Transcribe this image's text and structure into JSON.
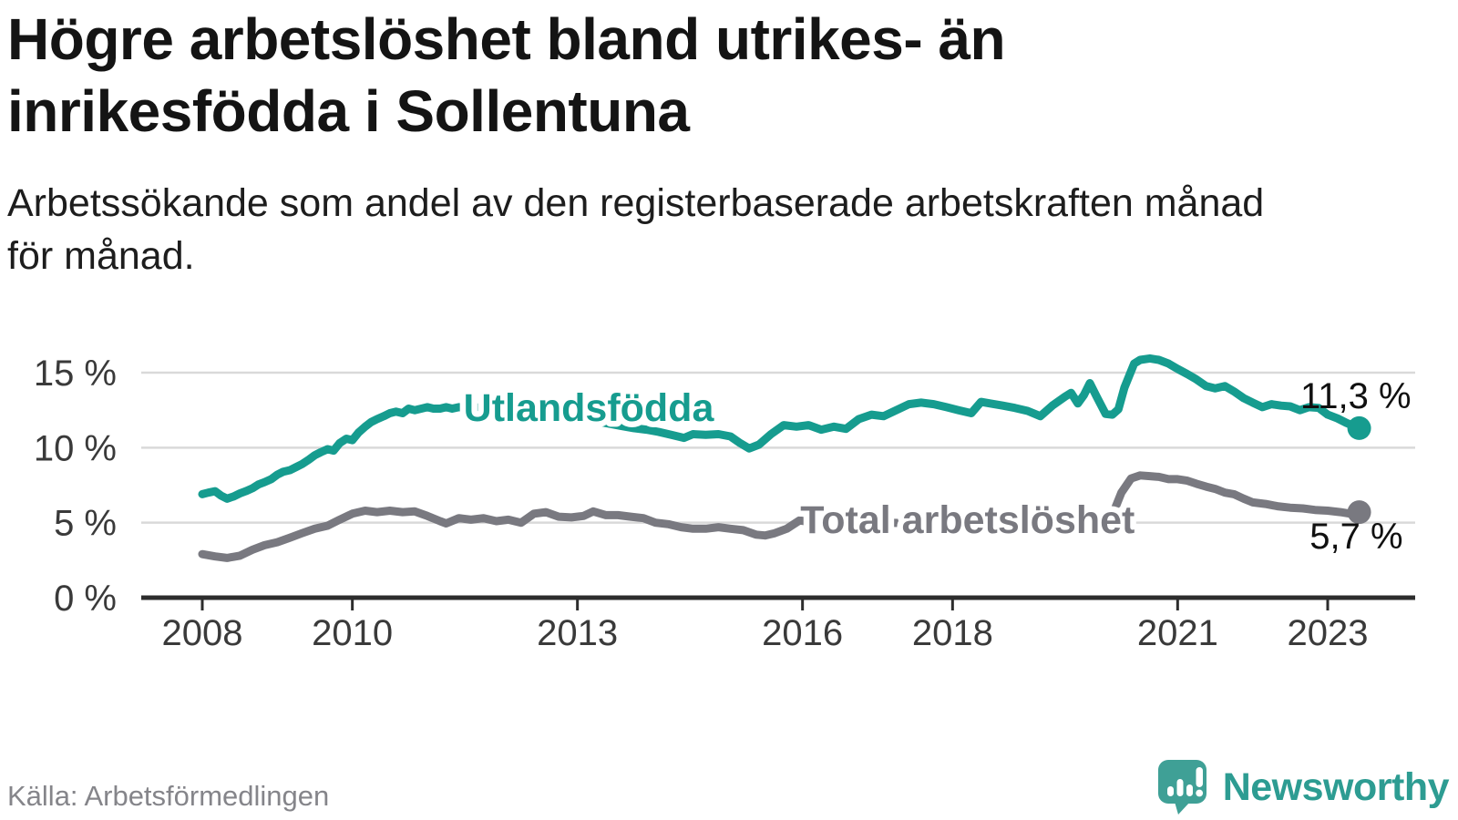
{
  "header": {
    "title_lines": [
      "Högre arbetslöshet bland utrikes- än",
      "inrikesfödda i Sollentuna"
    ],
    "subtitle_lines": [
      "Arbetssökande som andel av den registerbaserade arbetskraften månad",
      "för månad."
    ]
  },
  "footer": {
    "source": "Källa: Arbetsförmedlingen",
    "brand": "Newsworthy",
    "brand_color": "#2d9c92",
    "logo_icon": "speech-bubble-bar-chart-icon"
  },
  "colors": {
    "background": "#ffffff",
    "grid": "#d9d9d9",
    "axis": "#2d2d2d",
    "axis_text": "#3a3a3a",
    "teal_series": "#169c8f",
    "gray_series": "#797980",
    "value_label": "#101010"
  },
  "chart_data": {
    "type": "line",
    "unit": "%",
    "grid": "horizontal-only",
    "x_axis": {
      "range": [
        2007.2,
        2024.2
      ],
      "ticks": [
        2008,
        2010,
        2013,
        2016,
        2018,
        2021,
        2023
      ],
      "tick_labels": [
        "2008",
        "2010",
        "2013",
        "2016",
        "2018",
        "2021",
        "2023"
      ]
    },
    "y_axis": {
      "range": [
        0,
        16.6
      ],
      "ticks": [
        0,
        5,
        10,
        15
      ],
      "tick_labels": [
        "0 %",
        "5 %",
        "10 %",
        "15 %"
      ]
    },
    "series": [
      {
        "id": "utlandsfodda",
        "name": "Utlandsfödda",
        "color": "#169c8f",
        "end_value": 11.3,
        "end_label": "11,3 %",
        "label_anchor": {
          "t": 2013.15,
          "pct": 11.78
        },
        "points": [
          [
            2008.0,
            6.9
          ],
          [
            2008.08,
            7.0
          ],
          [
            2008.17,
            7.1
          ],
          [
            2008.25,
            6.8
          ],
          [
            2008.33,
            6.6
          ],
          [
            2008.42,
            6.75
          ],
          [
            2008.5,
            6.95
          ],
          [
            2008.58,
            7.1
          ],
          [
            2008.67,
            7.3
          ],
          [
            2008.75,
            7.55
          ],
          [
            2008.83,
            7.7
          ],
          [
            2008.92,
            7.9
          ],
          [
            2009.0,
            8.2
          ],
          [
            2009.08,
            8.4
          ],
          [
            2009.17,
            8.5
          ],
          [
            2009.25,
            8.7
          ],
          [
            2009.33,
            8.9
          ],
          [
            2009.42,
            9.2
          ],
          [
            2009.5,
            9.5
          ],
          [
            2009.58,
            9.7
          ],
          [
            2009.67,
            9.9
          ],
          [
            2009.75,
            9.8
          ],
          [
            2009.83,
            10.3
          ],
          [
            2009.92,
            10.6
          ],
          [
            2010.0,
            10.5
          ],
          [
            2010.08,
            11.0
          ],
          [
            2010.17,
            11.4
          ],
          [
            2010.25,
            11.7
          ],
          [
            2010.33,
            11.9
          ],
          [
            2010.42,
            12.1
          ],
          [
            2010.5,
            12.3
          ],
          [
            2010.58,
            12.4
          ],
          [
            2010.67,
            12.3
          ],
          [
            2010.75,
            12.6
          ],
          [
            2010.83,
            12.5
          ],
          [
            2010.92,
            12.6
          ],
          [
            2011.0,
            12.7
          ],
          [
            2011.08,
            12.6
          ],
          [
            2011.17,
            12.6
          ],
          [
            2011.25,
            12.7
          ],
          [
            2011.33,
            12.6
          ],
          [
            2011.42,
            12.7
          ],
          [
            2011.58,
            12.65
          ],
          [
            2011.75,
            12.7
          ],
          [
            2011.92,
            12.55
          ],
          [
            2012.08,
            12.45
          ],
          [
            2012.25,
            12.35
          ],
          [
            2012.42,
            12.25
          ],
          [
            2012.58,
            12.15
          ],
          [
            2012.75,
            12.05
          ],
          [
            2012.92,
            11.95
          ],
          [
            2013.08,
            11.85
          ],
          [
            2013.25,
            11.75
          ],
          [
            2013.42,
            11.6
          ],
          [
            2013.58,
            11.45
          ],
          [
            2013.75,
            11.3
          ],
          [
            2013.92,
            11.2
          ],
          [
            2014.08,
            11.05
          ],
          [
            2014.25,
            10.85
          ],
          [
            2014.42,
            10.65
          ],
          [
            2014.54,
            10.9
          ],
          [
            2014.71,
            10.85
          ],
          [
            2014.88,
            10.9
          ],
          [
            2015.04,
            10.75
          ],
          [
            2015.17,
            10.3
          ],
          [
            2015.29,
            9.95
          ],
          [
            2015.42,
            10.2
          ],
          [
            2015.58,
            10.9
          ],
          [
            2015.75,
            11.5
          ],
          [
            2015.92,
            11.4
          ],
          [
            2016.08,
            11.5
          ],
          [
            2016.25,
            11.2
          ],
          [
            2016.42,
            11.4
          ],
          [
            2016.58,
            11.25
          ],
          [
            2016.75,
            11.9
          ],
          [
            2016.92,
            12.2
          ],
          [
            2017.08,
            12.1
          ],
          [
            2017.25,
            12.5
          ],
          [
            2017.42,
            12.9
          ],
          [
            2017.58,
            13.0
          ],
          [
            2017.75,
            12.9
          ],
          [
            2017.92,
            12.7
          ],
          [
            2018.08,
            12.5
          ],
          [
            2018.25,
            12.3
          ],
          [
            2018.38,
            13.05
          ],
          [
            2018.5,
            12.95
          ],
          [
            2018.67,
            12.8
          ],
          [
            2018.83,
            12.65
          ],
          [
            2019.0,
            12.45
          ],
          [
            2019.17,
            12.1
          ],
          [
            2019.33,
            12.8
          ],
          [
            2019.5,
            13.4
          ],
          [
            2019.58,
            13.65
          ],
          [
            2019.67,
            12.95
          ],
          [
            2019.75,
            13.5
          ],
          [
            2019.83,
            14.3
          ],
          [
            2019.92,
            13.4
          ],
          [
            2020.04,
            12.25
          ],
          [
            2020.13,
            12.2
          ],
          [
            2020.21,
            12.55
          ],
          [
            2020.29,
            14.0
          ],
          [
            2020.42,
            15.6
          ],
          [
            2020.5,
            15.85
          ],
          [
            2020.63,
            15.95
          ],
          [
            2020.75,
            15.85
          ],
          [
            2020.88,
            15.6
          ],
          [
            2021.0,
            15.25
          ],
          [
            2021.13,
            14.9
          ],
          [
            2021.25,
            14.55
          ],
          [
            2021.38,
            14.1
          ],
          [
            2021.5,
            13.95
          ],
          [
            2021.63,
            14.1
          ],
          [
            2021.75,
            13.75
          ],
          [
            2021.88,
            13.3
          ],
          [
            2022.0,
            13.0
          ],
          [
            2022.13,
            12.7
          ],
          [
            2022.25,
            12.9
          ],
          [
            2022.38,
            12.8
          ],
          [
            2022.5,
            12.75
          ],
          [
            2022.63,
            12.5
          ],
          [
            2022.75,
            12.7
          ],
          [
            2022.88,
            12.65
          ],
          [
            2023.0,
            12.2
          ],
          [
            2023.13,
            11.95
          ],
          [
            2023.25,
            11.65
          ],
          [
            2023.42,
            11.3
          ]
        ]
      },
      {
        "id": "total",
        "name": "Total arbetslöshet",
        "color": "#797980",
        "end_value": 5.7,
        "end_label": "5,7 %",
        "label_anchor": {
          "t": 2018.2,
          "pct": 4.31
        },
        "points": [
          [
            2008.0,
            2.9
          ],
          [
            2008.17,
            2.75
          ],
          [
            2008.33,
            2.65
          ],
          [
            2008.5,
            2.8
          ],
          [
            2008.67,
            3.2
          ],
          [
            2008.83,
            3.5
          ],
          [
            2009.0,
            3.7
          ],
          [
            2009.17,
            4.0
          ],
          [
            2009.33,
            4.3
          ],
          [
            2009.5,
            4.6
          ],
          [
            2009.67,
            4.8
          ],
          [
            2009.83,
            5.2
          ],
          [
            2010.0,
            5.6
          ],
          [
            2010.17,
            5.8
          ],
          [
            2010.33,
            5.7
          ],
          [
            2010.5,
            5.8
          ],
          [
            2010.67,
            5.7
          ],
          [
            2010.83,
            5.75
          ],
          [
            2011.0,
            5.45
          ],
          [
            2011.17,
            5.1
          ],
          [
            2011.25,
            4.95
          ],
          [
            2011.42,
            5.3
          ],
          [
            2011.58,
            5.2
          ],
          [
            2011.75,
            5.3
          ],
          [
            2011.92,
            5.1
          ],
          [
            2012.08,
            5.2
          ],
          [
            2012.25,
            5.0
          ],
          [
            2012.42,
            5.6
          ],
          [
            2012.58,
            5.7
          ],
          [
            2012.75,
            5.4
          ],
          [
            2012.92,
            5.35
          ],
          [
            2013.08,
            5.45
          ],
          [
            2013.21,
            5.75
          ],
          [
            2013.38,
            5.5
          ],
          [
            2013.54,
            5.5
          ],
          [
            2013.71,
            5.4
          ],
          [
            2013.88,
            5.3
          ],
          [
            2014.04,
            5.0
          ],
          [
            2014.21,
            4.9
          ],
          [
            2014.38,
            4.7
          ],
          [
            2014.54,
            4.6
          ],
          [
            2014.71,
            4.6
          ],
          [
            2014.88,
            4.7
          ],
          [
            2015.04,
            4.6
          ],
          [
            2015.21,
            4.5
          ],
          [
            2015.38,
            4.2
          ],
          [
            2015.5,
            4.15
          ],
          [
            2015.63,
            4.3
          ],
          [
            2015.79,
            4.6
          ],
          [
            2015.96,
            5.15
          ],
          [
            2016.17,
            5.0
          ],
          [
            2016.5,
            4.9
          ],
          [
            2016.83,
            4.95
          ],
          [
            2017.17,
            5.0
          ],
          [
            2017.5,
            4.95
          ],
          [
            2017.83,
            4.9
          ],
          [
            2018.17,
            4.85
          ],
          [
            2018.5,
            4.85
          ],
          [
            2018.83,
            4.9
          ],
          [
            2019.17,
            4.9
          ],
          [
            2019.5,
            4.95
          ],
          [
            2019.83,
            5.0
          ],
          [
            2020.0,
            5.1
          ],
          [
            2020.13,
            5.5
          ],
          [
            2020.25,
            7.0
          ],
          [
            2020.38,
            7.95
          ],
          [
            2020.5,
            8.15
          ],
          [
            2020.63,
            8.1
          ],
          [
            2020.75,
            8.05
          ],
          [
            2020.88,
            7.9
          ],
          [
            2021.0,
            7.9
          ],
          [
            2021.13,
            7.8
          ],
          [
            2021.25,
            7.6
          ],
          [
            2021.38,
            7.4
          ],
          [
            2021.5,
            7.25
          ],
          [
            2021.63,
            7.0
          ],
          [
            2021.75,
            6.9
          ],
          [
            2021.88,
            6.6
          ],
          [
            2022.0,
            6.35
          ],
          [
            2022.17,
            6.25
          ],
          [
            2022.33,
            6.1
          ],
          [
            2022.5,
            6.0
          ],
          [
            2022.67,
            5.95
          ],
          [
            2022.83,
            5.85
          ],
          [
            2023.0,
            5.8
          ],
          [
            2023.17,
            5.7
          ],
          [
            2023.3,
            5.6
          ],
          [
            2023.42,
            5.7
          ]
        ]
      }
    ]
  }
}
